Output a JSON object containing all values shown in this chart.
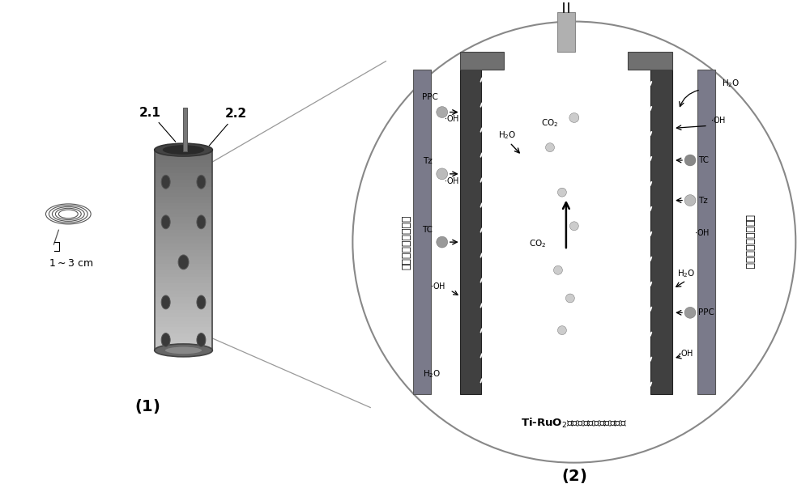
{
  "bg_color": "#ffffff",
  "fig_label1": "(1)",
  "fig_label2": "(2)",
  "left_vert_label": "穿孔不锈钐（阴极）",
  "right_vert_label": "穿孔不锈钐（阳极）",
  "bottom_label": "Ti-RuO₂微孔管式膜电极（阳极）",
  "plate_color": "#7a7a7a",
  "membrane_color": "#3a3a3a",
  "cap_color": "#6a6a6a",
  "dot_dark": "#808080",
  "dot_medium": "#999999",
  "dot_light": "#bbbbbb",
  "cyl_light": "#c8c8c8",
  "cyl_dark": "#505050",
  "cyl_mid": "#909090"
}
